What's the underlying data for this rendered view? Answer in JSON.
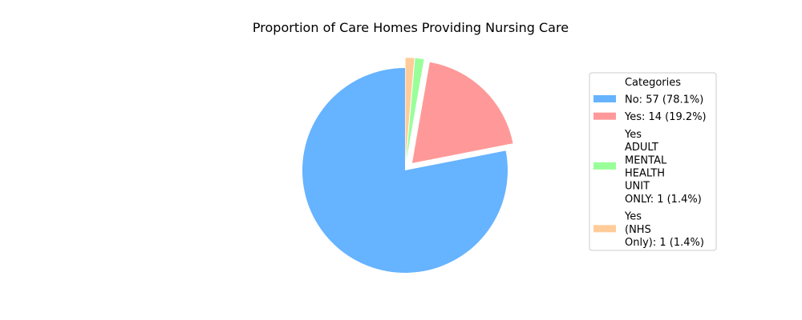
{
  "chart_data": {
    "type": "pie",
    "title": "Proportion of Care Homes Providing Nursing Care",
    "legend_title": "Categories",
    "legend_position": "right",
    "slices": [
      {
        "label": "No",
        "value": 57,
        "percent": 78.1,
        "color": "#66b3ff",
        "exploded": false,
        "legend_lines": [
          "No: 57 (78.1%)"
        ]
      },
      {
        "label": "Yes",
        "value": 14,
        "percent": 19.2,
        "color": "#ff9999",
        "exploded": true,
        "legend_lines": [
          "Yes: 14 (19.2%)"
        ]
      },
      {
        "label": "Yes ADULT MENTAL HEALTH UNIT ONLY",
        "value": 1,
        "percent": 1.4,
        "color": "#99ff99",
        "exploded": true,
        "legend_lines": [
          "Yes",
          "ADULT",
          "MENTAL",
          "HEALTH",
          "UNIT",
          "ONLY: 1 (1.4%)"
        ]
      },
      {
        "label": "Yes (NHS Only)",
        "value": 1,
        "percent": 1.4,
        "color": "#ffcc99",
        "exploded": true,
        "legend_lines": [
          "Yes",
          "(NHS",
          "Only): 1 (1.4%)"
        ]
      }
    ]
  }
}
